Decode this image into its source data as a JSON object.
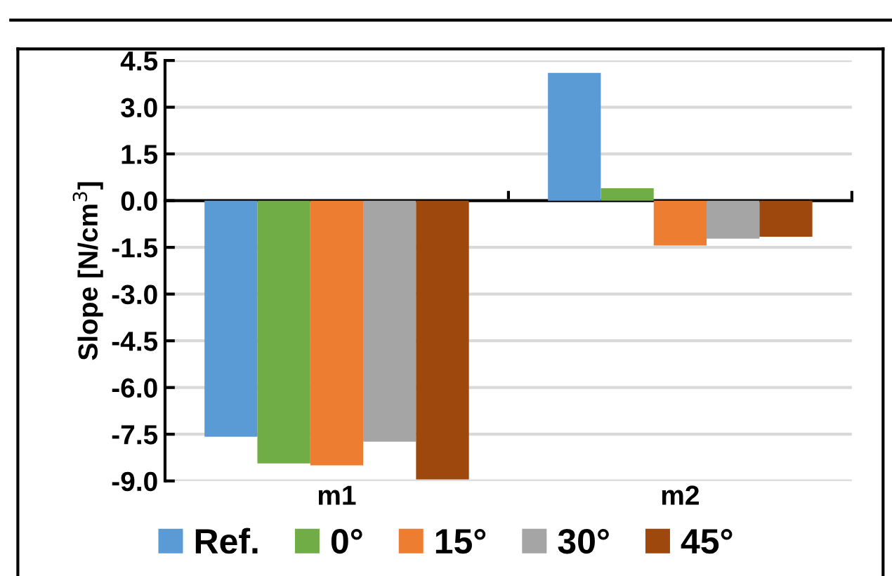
{
  "chart_data": {
    "type": "bar",
    "ylabel": "Slope [N/cm$^{3}$]",
    "categories": [
      "m1",
      "m2"
    ],
    "series": [
      {
        "name": "Ref.",
        "color": "#5b9bd5",
        "values": [
          -7.58,
          4.1
        ]
      },
      {
        "name": "0°",
        "color": "#70ad47",
        "values": [
          -8.44,
          0.4
        ]
      },
      {
        "name": "15°",
        "color": "#ed7d31",
        "values": [
          -8.5,
          -1.44
        ]
      },
      {
        "name": "30°",
        "color": "#a5a5a5",
        "values": [
          -7.74,
          -1.22
        ]
      },
      {
        "name": "45°",
        "color": "#9e480e",
        "values": [
          -8.95,
          -1.16
        ]
      }
    ],
    "ylim": [
      -9.0,
      4.5
    ],
    "yticks": [
      {
        "value": 4.5,
        "label": "4.5"
      },
      {
        "value": 3.0,
        "label": "3.0"
      },
      {
        "value": 1.5,
        "label": "1.5"
      },
      {
        "value": 0.0,
        "label": "0.0"
      },
      {
        "value": -1.5,
        "label": "-1.5"
      },
      {
        "value": -3.0,
        "label": "-3.0"
      },
      {
        "value": -4.5,
        "label": "-4.5"
      },
      {
        "value": -6.0,
        "label": "-6.0"
      },
      {
        "value": -7.5,
        "label": "-7.5"
      },
      {
        "value": -9.0,
        "label": "-9.0"
      }
    ],
    "grid": "y",
    "legend": "bottom"
  }
}
